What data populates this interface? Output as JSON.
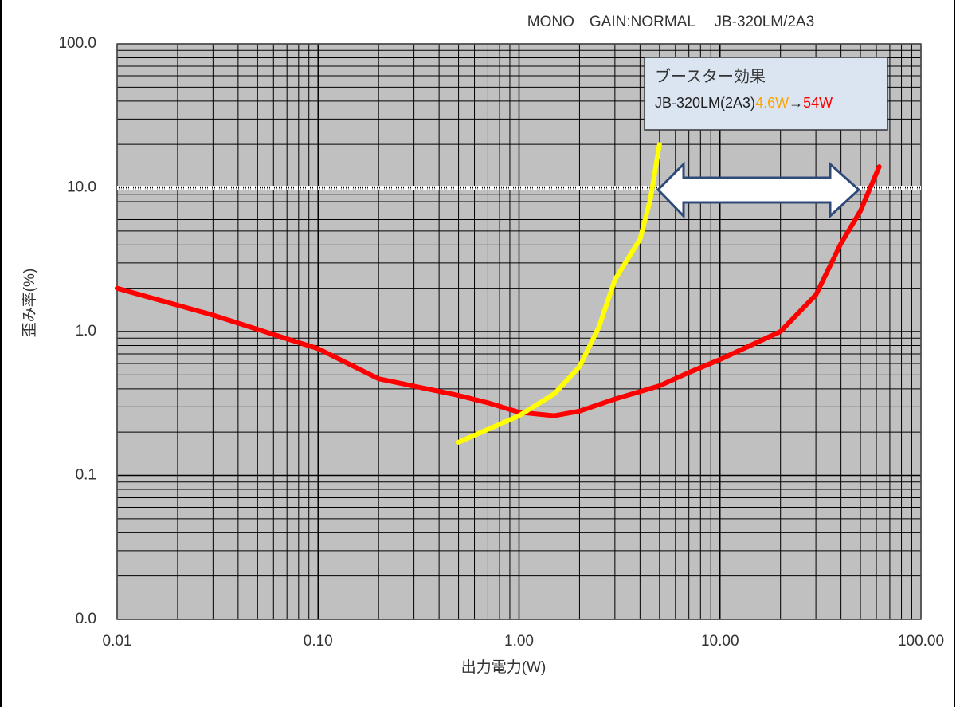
{
  "chart_data": {
    "type": "line",
    "title": "MONO　GAIN:NORMAL　 JB-320LM/2A3",
    "x_label": "出力電力(W)",
    "y_label": "歪み率(%)",
    "log_x": true,
    "log_y": true,
    "grid": true,
    "minor_grid": true,
    "background": "#c0c0c0",
    "xlim": [
      0.01,
      100
    ],
    "xticks": [
      0.01,
      {
        "value": 0.1,
        "label": "0.10"
      },
      {
        "value": 1,
        "label": "1.00"
      },
      {
        "value": 10,
        "label": "10.00"
      },
      {
        "value": 100,
        "label": "100.00"
      }
    ],
    "ylim": [
      0.01,
      100
    ],
    "yticks": [
      {
        "value": 0.01,
        "label": "0.0"
      },
      0.1,
      {
        "value": 1,
        "label": "1.0"
      },
      {
        "value": 10,
        "label": "10.0"
      },
      {
        "value": 100,
        "label": "100.0"
      }
    ],
    "reference_line": {
      "value": 10,
      "color": "#ffffff"
    },
    "series": [
      {
        "color": "#ff0000",
        "x": [
          0.01,
          0.03,
          0.1,
          0.2,
          0.5,
          0.7,
          1,
          1.5,
          2,
          3,
          5,
          7,
          10,
          20,
          30,
          40,
          50,
          62
        ],
        "values": [
          2.0,
          1.3,
          0.76,
          0.47,
          0.36,
          0.32,
          0.275,
          0.26,
          0.28,
          0.34,
          0.42,
          0.52,
          0.64,
          1.0,
          1.8,
          4.1,
          6.9,
          14
        ]
      },
      {
        "color": "#ffff00",
        "x": [
          0.5,
          1,
          1.5,
          2,
          2.5,
          3,
          4,
          4.5,
          5
        ],
        "values": [
          0.17,
          0.26,
          0.37,
          0.57,
          1.08,
          2.3,
          4.4,
          8.3,
          20
        ]
      }
    ],
    "annotation": {
      "title": "ブースター効果",
      "parts": [
        {
          "text": "JB-320LM(2A3)",
          "color": "#1f1f1f"
        },
        {
          "text": "4.6W",
          "color": "#ffa500"
        },
        {
          "text": "→",
          "color": "#1f1f1f"
        },
        {
          "text": "54W",
          "color": "#ff0000"
        }
      ]
    }
  }
}
